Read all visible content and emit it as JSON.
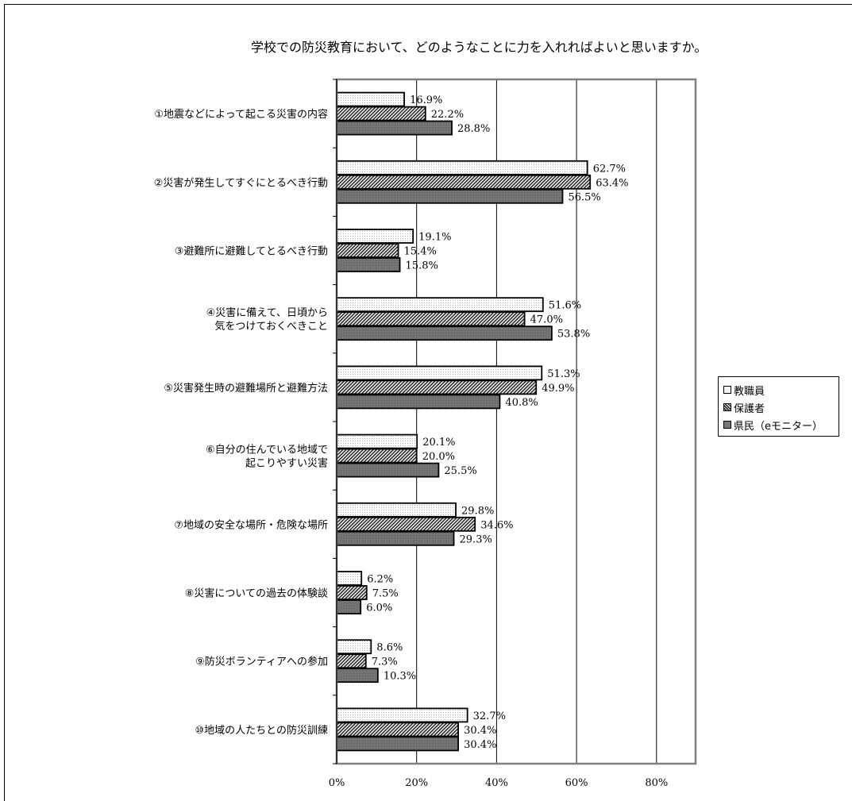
{
  "chart_data": {
    "type": "bar",
    "orientation": "horizontal",
    "title": "学校での防災教育において、どのようなことに力を入れればよいと思いますか。",
    "categories": [
      [
        "①地震などによって起こる災害の内容"
      ],
      [
        "②災害が発生してすぐにとるべき行動"
      ],
      [
        "③避難所に避難してとるべき行動"
      ],
      [
        "④災害に備えて、日頃から",
        "気をつけておくべきこと"
      ],
      [
        "⑤災害発生時の避難場所と避難方法"
      ],
      [
        "⑥自分の住んでいる地域で",
        "起こりやすい災害"
      ],
      [
        "⑦地域の安全な場所・危険な場所"
      ],
      [
        "⑧災害についての過去の体験談"
      ],
      [
        "⑨防災ボランティアへの参加"
      ],
      [
        "⑩地域の人たちとの防災訓練"
      ]
    ],
    "series": [
      {
        "name": "教職員",
        "values": [
          16.9,
          62.7,
          19.1,
          51.6,
          51.3,
          20.1,
          29.8,
          6.2,
          8.6,
          32.7
        ],
        "labels": [
          "16.9%",
          "62.7%",
          "19.1%",
          "51.6%",
          "51.3%",
          "20.1%",
          "29.8%",
          "6.2%",
          "8.6%",
          "32.7%"
        ]
      },
      {
        "name": "保護者",
        "values": [
          22.2,
          63.4,
          15.4,
          47.0,
          49.9,
          20.0,
          34.6,
          7.5,
          7.3,
          30.4
        ],
        "labels": [
          "22.2%",
          "63.4%",
          "15.4%",
          "47.0%",
          "49.9%",
          "20.0%",
          "34.6%",
          "7.5%",
          "7.3%",
          "30.4%"
        ]
      },
      {
        "name": "県民（eモニター）",
        "values": [
          28.8,
          56.5,
          15.8,
          53.8,
          40.8,
          25.5,
          29.3,
          6.0,
          10.3,
          30.4
        ],
        "labels": [
          "28.8%",
          "56.5%",
          "15.8%",
          "53.8%",
          "40.8%",
          "25.5%",
          "29.3%",
          "6.0%",
          "10.3%",
          "30.4%"
        ]
      }
    ],
    "xticks": [
      "0%",
      "20%",
      "40%",
      "60%",
      "80%"
    ],
    "xlim": [
      0,
      90
    ],
    "grid": true,
    "legend_position": "right",
    "series_colors": [
      "#f4f4f4",
      "hatched",
      "#777777"
    ]
  }
}
